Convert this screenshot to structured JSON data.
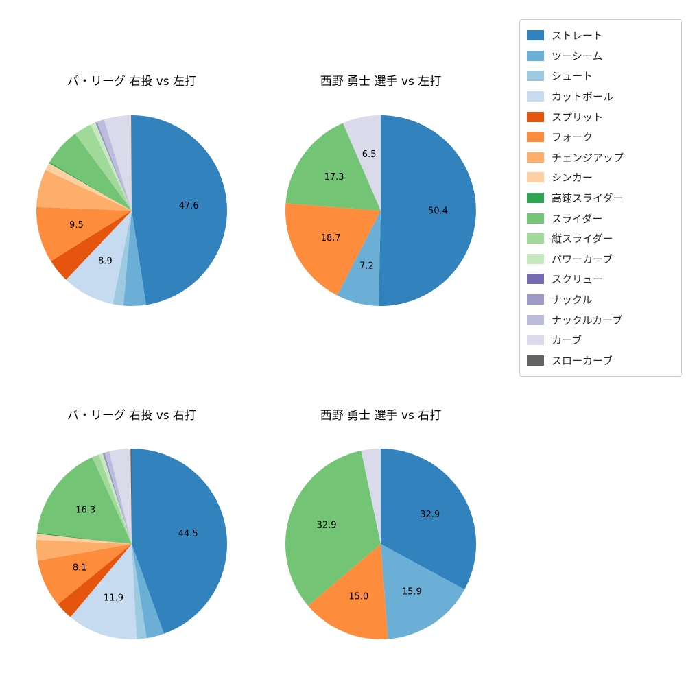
{
  "chart_data": {
    "type": "pie",
    "layout": "2x2 grid of pies with shared legend",
    "legend_position": "upper right",
    "start_angle_deg": 90,
    "direction": "clockwise",
    "autopct_threshold": 6.5,
    "grid": false,
    "categories": [
      "ストレート",
      "ツーシーム",
      "シュート",
      "カットボール",
      "スプリット",
      "フォーク",
      "チェンジアップ",
      "シンカー",
      "高速スライダー",
      "スライダー",
      "縦スライダー",
      "パワーカーブ",
      "スクリュー",
      "ナックル",
      "ナックルカーブ",
      "カーブ",
      "スローカーブ"
    ],
    "colors": [
      "#3182bd",
      "#6baed6",
      "#9ecae1",
      "#c6dbef",
      "#e6550d",
      "#fd8d3c",
      "#fdae6b",
      "#fdd0a2",
      "#31a354",
      "#74c476",
      "#a1d99b",
      "#c7e9c0",
      "#756bb1",
      "#9e9ac8",
      "#bcbddc",
      "#dadaeb",
      "#636363"
    ],
    "pies": [
      {
        "title": "パ・リーグ 右投 vs 左打",
        "values": [
          47.6,
          3.8,
          1.8,
          8.9,
          4.0,
          9.5,
          6.4,
          1.3,
          0.2,
          6.4,
          3.0,
          0.9,
          0.1,
          0.2,
          1.2,
          4.6,
          0.1
        ],
        "visible_labels": [
          "47.6",
          "8.9",
          "9.5"
        ]
      },
      {
        "title": "西野 勇士 選手 vs 左打",
        "values": [
          50.4,
          7.2,
          0,
          0,
          0,
          18.7,
          0,
          0,
          0,
          17.3,
          0,
          0,
          0,
          0,
          0,
          6.5,
          0
        ],
        "visible_labels": [
          "50.4",
          "7.2",
          "18.7",
          "17.3",
          "6.5"
        ]
      },
      {
        "title": "パ・リーグ 右投 vs 右打",
        "values": [
          44.5,
          3.0,
          1.7,
          11.9,
          3.0,
          8.1,
          3.5,
          1.0,
          0.2,
          16.3,
          1.2,
          0.7,
          0.1,
          0.2,
          0.8,
          3.6,
          0.2
        ],
        "visible_labels": [
          "44.5",
          "11.9",
          "8.1",
          "16.3"
        ]
      },
      {
        "title": "西野 勇士 選手 vs 右打",
        "values": [
          32.9,
          15.9,
          0,
          0,
          0,
          15.0,
          0,
          0,
          0,
          32.9,
          0,
          0,
          0,
          0,
          0,
          3.3,
          0
        ],
        "visible_labels": [
          "32.9",
          "15.9",
          "15.0",
          "32.9"
        ]
      }
    ]
  }
}
